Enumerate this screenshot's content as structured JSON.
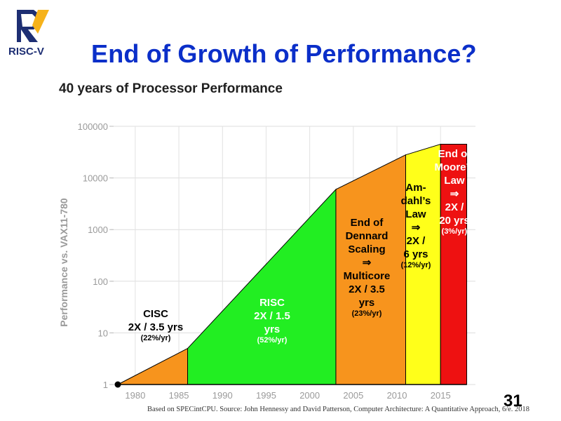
{
  "slide": {
    "title": "End of Growth of Performance?",
    "page_number": "31",
    "source": "Based on SPECintCPU. Source: John Hennessy and David Patterson, Computer Architecture: A Quantitative Approach, 6/e. 2018"
  },
  "logo": {
    "text": "RISC-V",
    "colors": {
      "blue": "#1d2e73",
      "gold": "#f6b21b"
    }
  },
  "chart_data": {
    "type": "area",
    "title": "40 years of Processor Performance",
    "ylabel": "Performance vs. VAX11-780",
    "xlabel": "",
    "yscale": "log",
    "ylim": [
      1,
      100000
    ],
    "xlim": [
      1978,
      2019
    ],
    "yticks": [
      1,
      10,
      100,
      1000,
      10000,
      100000
    ],
    "ytick_labels": [
      "1",
      "10",
      "100",
      "1000",
      "10000",
      "100000"
    ],
    "xticks": [
      1980,
      1985,
      1990,
      1995,
      2000,
      2005,
      2010,
      2015
    ],
    "xtick_labels": [
      "1980",
      "1985",
      "1990",
      "1995",
      "2000",
      "2005",
      "2010",
      "2015"
    ],
    "start_point": {
      "x": 1978,
      "y": 1
    },
    "regions": [
      {
        "name": "cisc",
        "x": [
          1978,
          1986
        ],
        "y": [
          1,
          5
        ],
        "color": "#f7941d",
        "label": [
          "CISC",
          "2X / 3.5 yrs"
        ],
        "rate": "(22%/yr)",
        "text_color": "#000000"
      },
      {
        "name": "risc",
        "x": [
          1986,
          2003
        ],
        "y": [
          5,
          6000
        ],
        "color": "#22ee22",
        "label": [
          "RISC",
          "2X / 1.5",
          "yrs"
        ],
        "rate": "(52%/yr)",
        "text_color": "#ffffff"
      },
      {
        "name": "dennard",
        "x": [
          2003,
          2011
        ],
        "y": [
          6000,
          28000
        ],
        "color": "#f7941d",
        "label": [
          "End of",
          "Dennard",
          "Scaling",
          "⇒",
          "Multicore",
          "2X / 3.5",
          "yrs"
        ],
        "rate": "(23%/yr)",
        "text_color": "#000000"
      },
      {
        "name": "amdahl",
        "x": [
          2011,
          2015
        ],
        "y": [
          28000,
          45000
        ],
        "color": "#ffff1a",
        "label": [
          "Am-",
          "dahl’s",
          "Law",
          "⇒",
          "2X /",
          "6 yrs"
        ],
        "rate": "(12%/yr)",
        "text_color": "#000000"
      },
      {
        "name": "moore",
        "x": [
          2015,
          2018
        ],
        "y": [
          45000,
          45000
        ],
        "color": "#ee1111",
        "label": [
          "End of",
          "Moore’s",
          "Law",
          "⇒",
          "2X /",
          "20 yrs"
        ],
        "rate": "(3%/yr)",
        "text_color": "#ffffff"
      }
    ],
    "grid": true,
    "legend": "none"
  }
}
